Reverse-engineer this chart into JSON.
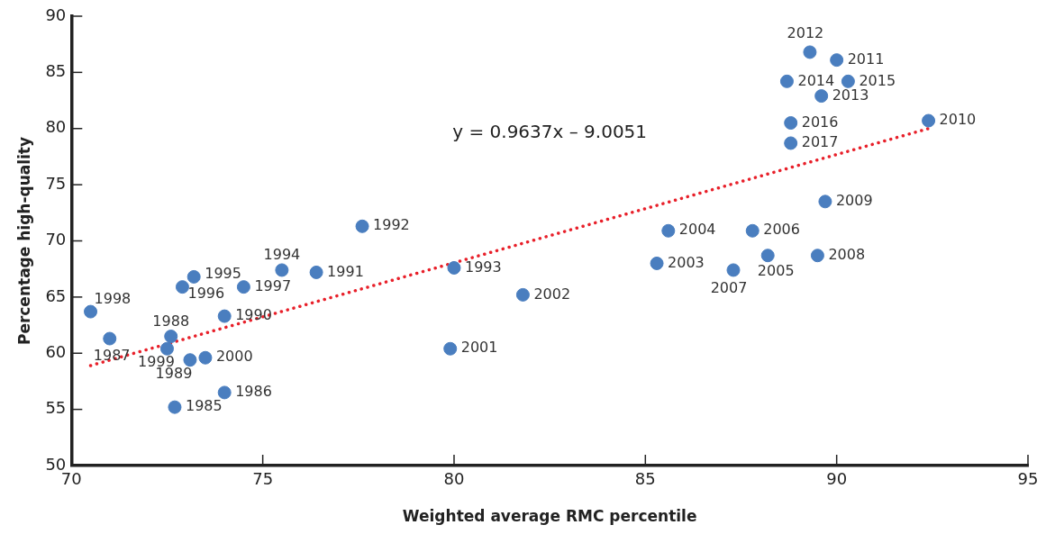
{
  "chart_data": {
    "type": "scatter",
    "xlabel": "Weighted average RMC percentile",
    "ylabel": "Percentage high-quality",
    "xlim": [
      70,
      95
    ],
    "xticks": [
      70,
      75,
      80,
      85,
      90,
      95
    ],
    "ylim": [
      50,
      90
    ],
    "yticks": [
      50,
      55,
      60,
      65,
      70,
      75,
      80,
      85,
      90
    ],
    "grid": false,
    "legend": false,
    "marker": "circle",
    "series": [
      {
        "color": "#4a7ebf",
        "x": [
          72.7,
          74.0,
          71.0,
          72.6,
          73.1,
          74.0,
          76.4,
          77.6,
          80.0,
          75.5,
          73.2,
          72.9,
          74.5,
          70.5,
          72.5,
          73.5,
          79.9,
          81.8,
          85.3,
          85.6,
          88.2,
          87.8,
          87.3,
          89.5,
          89.7,
          92.4,
          90.0,
          89.3,
          89.6,
          88.7,
          90.3,
          88.8,
          88.8
        ],
        "values": [
          55.2,
          56.5,
          61.3,
          61.5,
          59.4,
          63.3,
          67.2,
          71.3,
          67.6,
          67.4,
          66.8,
          65.9,
          65.9,
          63.7,
          60.4,
          59.6,
          60.4,
          65.2,
          68.0,
          70.9,
          68.7,
          70.9,
          67.4,
          68.7,
          73.5,
          80.7,
          86.1,
          86.8,
          82.9,
          84.2,
          84.2,
          80.5,
          78.7
        ]
      },
      {
        "type": "line",
        "color": "#e8202a",
        "line_style": "dotted",
        "marker": "none",
        "x": [
          70.5,
          92.4
        ],
        "values": [
          58.9,
          80.0
        ]
      }
    ],
    "annotations": [
      "y = 0.9637x – 9.0051",
      {
        "text": "1985",
        "x": 72.7,
        "y": 55.2
      },
      {
        "text": "1986",
        "x": 74.0,
        "y": 56.5
      },
      {
        "text": "1987",
        "x": 71.0,
        "y": 61.3
      },
      {
        "text": "1988",
        "x": 72.6,
        "y": 61.5
      },
      {
        "text": "1989",
        "x": 73.1,
        "y": 59.4
      },
      {
        "text": "1990",
        "x": 74.0,
        "y": 63.3
      },
      {
        "text": "1991",
        "x": 76.4,
        "y": 67.2
      },
      {
        "text": "1992",
        "x": 77.6,
        "y": 71.3
      },
      {
        "text": "1993",
        "x": 80.0,
        "y": 67.6
      },
      {
        "text": "1994",
        "x": 75.5,
        "y": 67.4
      },
      {
        "text": "1995",
        "x": 73.2,
        "y": 66.8
      },
      {
        "text": "1996",
        "x": 72.9,
        "y": 65.9
      },
      {
        "text": "1997",
        "x": 74.5,
        "y": 65.9
      },
      {
        "text": "1998",
        "x": 70.5,
        "y": 63.7
      },
      {
        "text": "1999",
        "x": 72.5,
        "y": 60.4
      },
      {
        "text": "2000",
        "x": 73.5,
        "y": 59.6
      },
      {
        "text": "2001",
        "x": 79.9,
        "y": 60.4
      },
      {
        "text": "2002",
        "x": 81.8,
        "y": 65.2
      },
      {
        "text": "2003",
        "x": 85.3,
        "y": 68.0
      },
      {
        "text": "2004",
        "x": 85.6,
        "y": 70.9
      },
      {
        "text": "2005",
        "x": 88.2,
        "y": 68.7
      },
      {
        "text": "2006",
        "x": 87.8,
        "y": 70.9
      },
      {
        "text": "2007",
        "x": 87.3,
        "y": 67.4
      },
      {
        "text": "2008",
        "x": 89.5,
        "y": 68.7
      },
      {
        "text": "2009",
        "x": 89.7,
        "y": 73.5
      },
      {
        "text": "2010",
        "x": 92.4,
        "y": 80.7
      },
      {
        "text": "2011",
        "x": 90.0,
        "y": 86.1
      },
      {
        "text": "2012",
        "x": 89.3,
        "y": 86.8
      },
      {
        "text": "2013",
        "x": 89.6,
        "y": 82.9
      },
      {
        "text": "2014",
        "x": 88.7,
        "y": 84.2
      },
      {
        "text": "2015",
        "x": 90.3,
        "y": 84.2
      },
      {
        "text": "2016",
        "x": 88.8,
        "y": 80.5
      },
      {
        "text": "2017",
        "x": 88.8,
        "y": 78.7
      }
    ]
  }
}
